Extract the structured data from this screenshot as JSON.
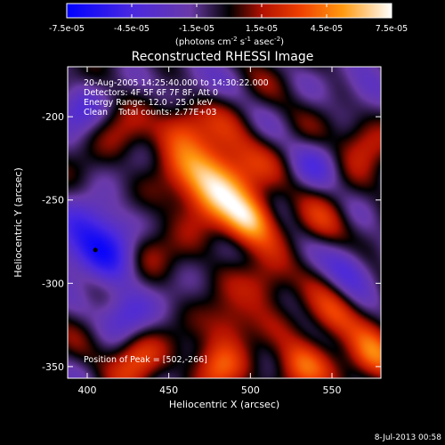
{
  "chart_data": {
    "type": "heatmap",
    "title": "Reconstructed RHESSI Image",
    "xlabel": "Heliocentric X (arcsec)",
    "ylabel": "Heliocentric Y (arcsec)",
    "xlim": [
      388,
      580
    ],
    "ylim": [
      -357,
      -170
    ],
    "x_ticks": [
      400,
      450,
      500,
      550
    ],
    "y_ticks": [
      -200,
      -250,
      -300,
      -350
    ],
    "x_tick_labels": [
      "400",
      "450",
      "500",
      "550"
    ],
    "y_tick_labels": [
      "-200",
      "-250",
      "-300",
      "-350"
    ],
    "colorbar": {
      "range": [
        -7.5e-05,
        7.5e-05
      ],
      "tick_labels": [
        "-7.5e-05",
        "-4.5e-05",
        "-1.5e-05",
        "1.5e-05",
        "4.5e-05",
        "7.5e-05"
      ],
      "tick_values": [
        -7.5e-05,
        -4.5e-05,
        -1.5e-05,
        1.5e-05,
        4.5e-05,
        7.5e-05
      ],
      "units_prefix": "(photons cm",
      "units_exp1": "-2",
      "units_mid": " s",
      "units_exp2": "-1",
      "units_suffix": " asec",
      "units_exp3": "-2",
      "units_close": ")",
      "colormap": [
        "#0000ff",
        "#7a3cc8",
        "#000000",
        "#d81c00",
        "#ff8000",
        "#ffffff"
      ]
    },
    "annotations": [
      "20-Aug-2005 14:25:40.000 to 14:30:22.000",
      "Detectors: 4F 5F 6F 7F 8F, Att 0",
      "Energy Range: 12.0 - 25.0 keV",
      "Clean    Total counts: 2.77E+03"
    ],
    "peak_label": "Position of Peak = [502,-266]",
    "peak": [
      502,
      -266
    ],
    "sources": [
      {
        "x": 478,
        "y": -238,
        "amp": 7.2e-05
      },
      {
        "x": 458,
        "y": -205,
        "amp": 3.8e-05
      },
      {
        "x": 500,
        "y": -262,
        "amp": 5.5e-05
      },
      {
        "x": 435,
        "y": -282,
        "amp": 2.6e-05
      },
      {
        "x": 510,
        "y": -300,
        "amp": 3e-05
      },
      {
        "x": 488,
        "y": -325,
        "amp": 2.8e-05
      },
      {
        "x": 550,
        "y": -320,
        "amp": 3.4e-05
      },
      {
        "x": 570,
        "y": -215,
        "amp": 3e-05
      },
      {
        "x": 545,
        "y": -265,
        "amp": 2.2e-05
      },
      {
        "x": 430,
        "y": -345,
        "amp": 4e-05
      },
      {
        "x": 480,
        "y": -350,
        "amp": 3.8e-05
      },
      {
        "x": 530,
        "y": -350,
        "amp": 4.2e-05
      },
      {
        "x": 575,
        "y": -345,
        "amp": 4.8e-05
      },
      {
        "x": 400,
        "y": -300,
        "amp": 2.4e-05
      },
      {
        "x": 420,
        "y": -210,
        "amp": 1.8e-05
      },
      {
        "x": 405,
        "y": -280,
        "amp": -6.5e-05
      },
      {
        "x": 395,
        "y": -195,
        "amp": -3e-05
      },
      {
        "x": 425,
        "y": -318,
        "amp": -3.6e-05
      },
      {
        "x": 570,
        "y": -180,
        "amp": -2.8e-05
      },
      {
        "x": 560,
        "y": -290,
        "amp": -3.2e-05
      },
      {
        "x": 460,
        "y": -180,
        "amp": -2.2e-05
      },
      {
        "x": 540,
        "y": -228,
        "amp": -2e-05
      }
    ]
  },
  "footer": {
    "timestamp": "8-Jul-2013 00:58"
  }
}
